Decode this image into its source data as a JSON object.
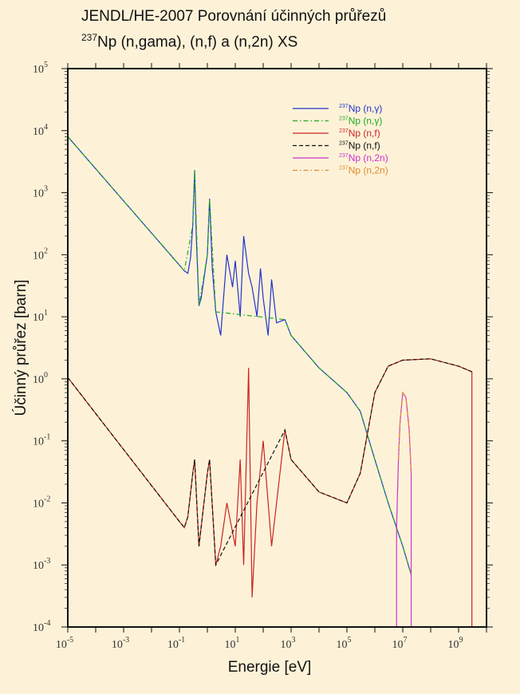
{
  "title_line1": "JENDL/HE-2007 Porovnání účinných průřezů",
  "title_line2_isotope": "237",
  "title_line2_rest": "Np (n,gama), (n,f) a (n,2n) XS",
  "chart_data": {
    "type": "line",
    "xlabel": "Energie [eV]",
    "ylabel": "Účinný průřez [barn]",
    "xscale": "log",
    "yscale": "log",
    "xlim": [
      1e-05,
      10000000000.0
    ],
    "ylim": [
      0.0001,
      100000.0
    ],
    "x_tick_labels": [
      "10-5",
      "10-3",
      "10-1",
      "101",
      "103",
      "105",
      "107",
      "109"
    ],
    "y_tick_labels": [
      "10-4",
      "10-3",
      "10-2",
      "10-1",
      "100",
      "101",
      "102",
      "103",
      "104",
      "105"
    ],
    "legend_position": "top-right",
    "series": [
      {
        "name": "237Np (n,γ)",
        "color": "#2233cc",
        "dash": "solid",
        "x": [
          1e-05,
          0.15,
          0.2,
          0.25,
          0.3,
          0.35,
          0.4,
          0.5,
          0.6,
          1,
          1.2,
          1.5,
          2,
          3,
          5,
          8,
          10,
          15,
          20,
          30,
          40,
          60,
          80,
          100,
          150,
          200,
          300,
          600,
          1000.0,
          10000.0,
          100000.0,
          300000.0,
          1000000.0,
          3000000.0,
          10000000.0,
          20000000.0
        ],
        "y": [
          8000,
          55,
          50,
          90,
          300,
          2300,
          200,
          15,
          20,
          100,
          800,
          60,
          12,
          5,
          100,
          30,
          80,
          10,
          200,
          50,
          30,
          10,
          60,
          20,
          5,
          40,
          8,
          9,
          5,
          1.5,
          0.6,
          0.3,
          0.05,
          0.01,
          0.002,
          0.0007
        ]
      },
      {
        "name": "237Np (n,γ)",
        "color": "#22aa22",
        "dash": "dashdot",
        "x": [
          1e-05,
          0.15,
          0.3,
          0.35,
          0.5,
          1,
          1.2,
          2,
          600,
          1000.0,
          10000.0,
          100000.0,
          300000.0,
          1000000.0,
          3000000.0,
          10000000.0,
          20000000.0
        ],
        "y": [
          8000,
          55,
          300,
          2300,
          15,
          100,
          800,
          12,
          9,
          5,
          1.5,
          0.6,
          0.3,
          0.05,
          0.01,
          0.002,
          0.0007
        ]
      },
      {
        "name": "237Np (n,f)",
        "color": "#cc2222",
        "dash": "solid",
        "x": [
          1e-05,
          0.1,
          0.15,
          0.2,
          0.3,
          0.35,
          0.5,
          1,
          1.2,
          2,
          3,
          5,
          10,
          15,
          20,
          30,
          40,
          60,
          100,
          200,
          600,
          1000.0,
          10000.0,
          100000.0,
          300000.0,
          1000000.0,
          3000000.0,
          10000000.0,
          100000000.0,
          1000000000.0,
          3000000000.0,
          3000000000.0
        ],
        "y": [
          1.05,
          0.005,
          0.004,
          0.006,
          0.03,
          0.05,
          0.002,
          0.03,
          0.05,
          0.001,
          0.002,
          0.01,
          0.002,
          0.05,
          0.001,
          1.5,
          0.0003,
          0.01,
          0.1,
          0.002,
          0.15,
          0.05,
          0.015,
          0.01,
          0.03,
          0.6,
          1.6,
          2.0,
          2.1,
          1.6,
          1.3,
          0.0001
        ]
      },
      {
        "name": "237Np (n,f)",
        "color": "#111111",
        "dash": "dashed",
        "x": [
          1e-05,
          0.1,
          0.15,
          0.2,
          0.3,
          0.35,
          0.5,
          1,
          1.2,
          2,
          600,
          1000.0,
          10000.0,
          100000.0,
          300000.0,
          1000000.0,
          3000000.0,
          10000000.0,
          100000000.0,
          1000000000.0,
          3000000000.0
        ],
        "y": [
          1.05,
          0.005,
          0.004,
          0.006,
          0.03,
          0.05,
          0.002,
          0.03,
          0.05,
          0.001,
          0.15,
          0.05,
          0.015,
          0.01,
          0.03,
          0.6,
          1.6,
          2.0,
          2.1,
          1.6,
          1.3
        ]
      },
      {
        "name": "237Np (n,2n)",
        "color": "#cc33cc",
        "dash": "solid",
        "x": [
          6000000.0,
          6000000.0,
          7000000.0,
          8000000.0,
          10000000.0,
          13000000.0,
          17000000.0,
          20000000.0,
          20000000.0
        ],
        "y": [
          0.0001,
          0.004,
          0.05,
          0.2,
          0.6,
          0.5,
          0.15,
          0.03,
          0.0001
        ]
      },
      {
        "name": "237Np (n,2n)",
        "color": "#e08a30",
        "dash": "dashdot",
        "x": [
          7000000.0,
          8000000.0,
          10000000.0,
          13000000.0,
          17000000.0,
          20000000.0
        ],
        "y": [
          0.05,
          0.2,
          0.6,
          0.5,
          0.15,
          0.03
        ]
      }
    ]
  }
}
